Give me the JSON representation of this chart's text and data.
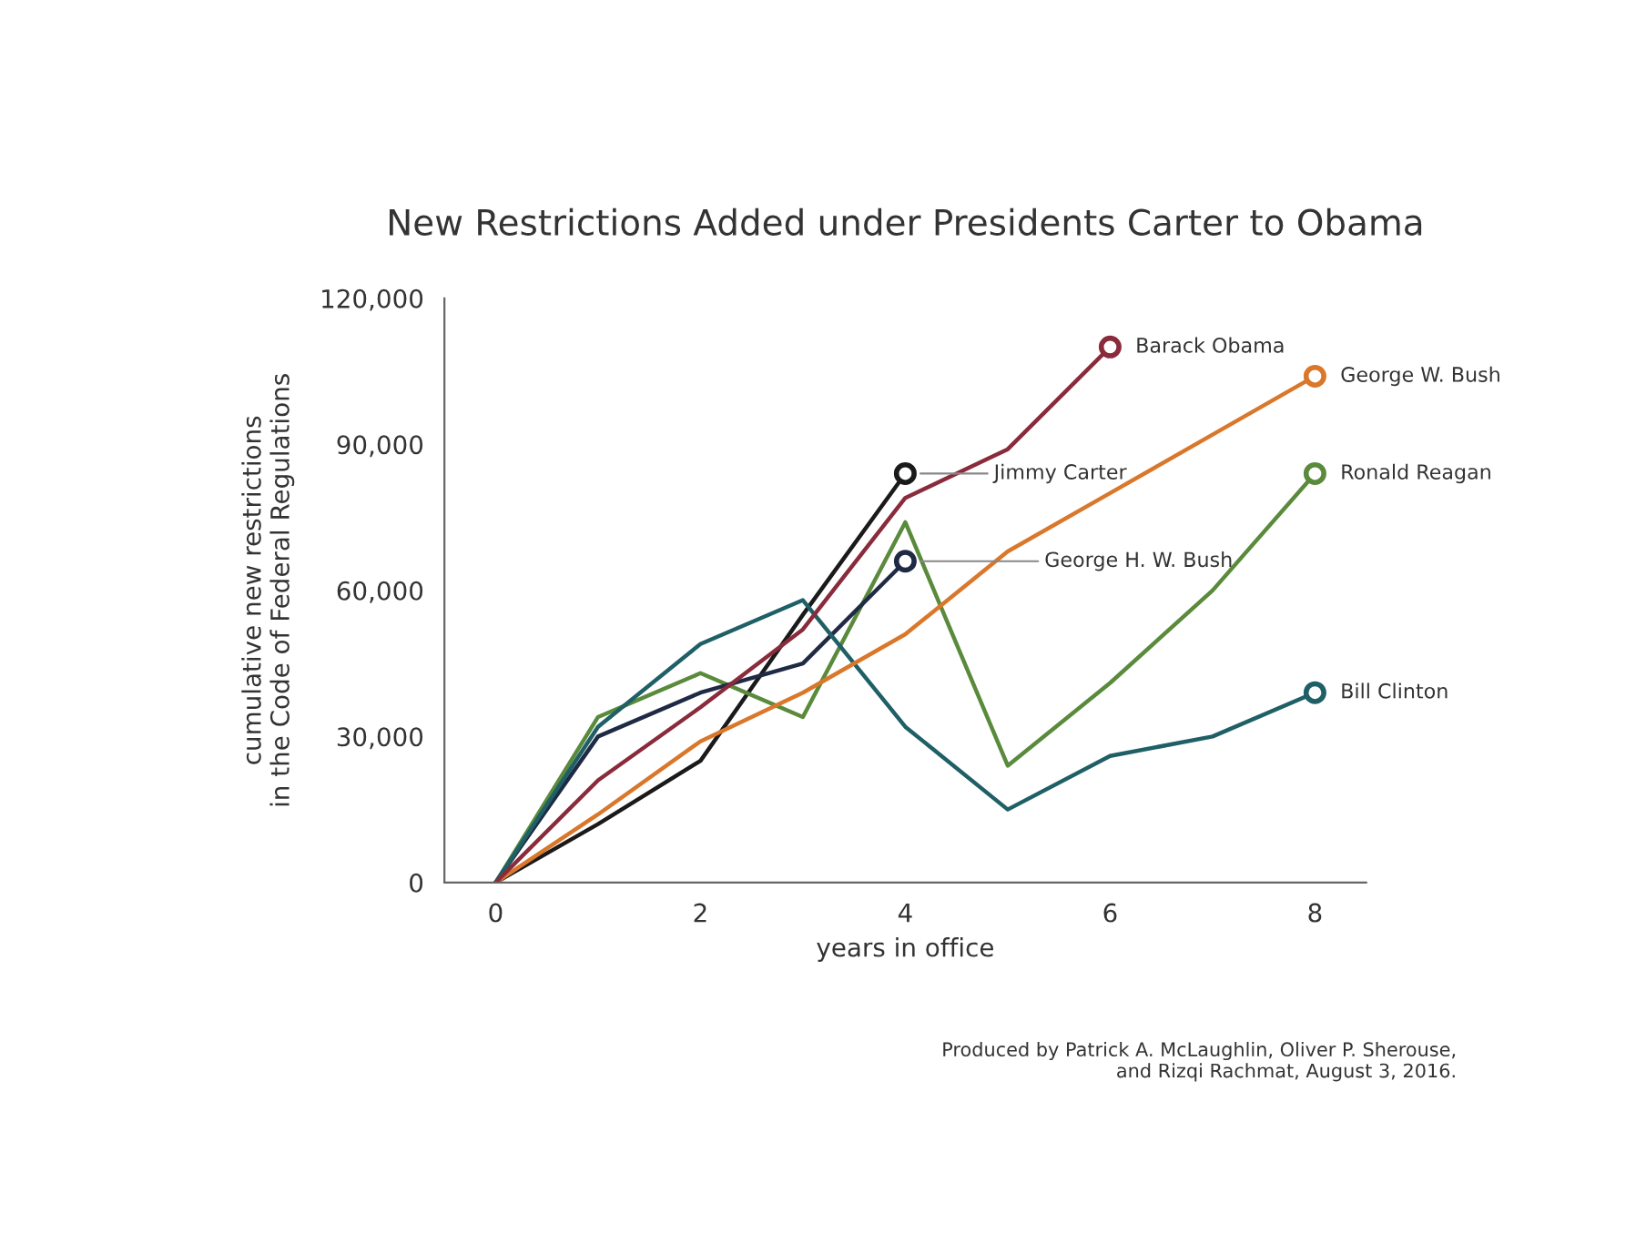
{
  "chart_data": {
    "type": "line",
    "title": "New Restrictions Added under Presidents Carter to Obama",
    "xlabel": "years in office",
    "ylabel": "cumulative new restrictions\nin the Code of Federal Regulations",
    "series": [
      {
        "name": "Jimmy Carter",
        "color": "#1a1a1a",
        "x": [
          0,
          1,
          2,
          3,
          4
        ],
        "values": [
          0,
          12000,
          25000,
          55000,
          84000
        ]
      },
      {
        "name": "Ronald Reagan",
        "color": "#5a8a3c",
        "x": [
          0,
          1,
          2,
          3,
          4,
          5,
          6,
          7,
          8
        ],
        "values": [
          0,
          34000,
          43000,
          34000,
          74000,
          24000,
          41000,
          60000,
          84000
        ]
      },
      {
        "name": "George H. W. Bush",
        "color": "#1f2a44",
        "x": [
          0,
          1,
          2,
          3,
          4
        ],
        "values": [
          0,
          30000,
          39000,
          45000,
          66000
        ]
      },
      {
        "name": "Bill Clinton",
        "color": "#1f5f66",
        "x": [
          0,
          1,
          2,
          3,
          4,
          5,
          6,
          7,
          8
        ],
        "values": [
          0,
          32000,
          49000,
          58000,
          32000,
          15000,
          26000,
          30000,
          39000
        ]
      },
      {
        "name": "George W. Bush",
        "color": "#d9772b",
        "x": [
          0,
          1,
          2,
          3,
          4,
          5,
          6,
          7,
          8
        ],
        "values": [
          0,
          14000,
          29000,
          39000,
          51000,
          68000,
          80000,
          92000,
          104000
        ]
      },
      {
        "name": "Barack Obama",
        "color": "#8a2b3b",
        "x": [
          0,
          1,
          2,
          3,
          4,
          5,
          6
        ],
        "values": [
          0,
          21000,
          36000,
          52000,
          79000,
          89000,
          110000
        ]
      }
    ],
    "xlim": [
      -0.5,
      8.5
    ],
    "xticks": [
      0,
      2,
      4,
      6,
      8
    ],
    "ylim": [
      0,
      120000
    ],
    "yticks": [
      {
        "value": 0,
        "label": "0"
      },
      {
        "value": 30000,
        "label": "30,000"
      },
      {
        "value": 60000,
        "label": "60,000"
      },
      {
        "value": 90000,
        "label": "90,000"
      },
      {
        "value": 120000,
        "label": "120,000"
      }
    ],
    "grid": false,
    "legend": false,
    "line_style": "solid",
    "annotations": [
      "Produced by Patrick A. McLaughlin, Oliver P. Sherouse,\nand Rizqi Rachmat, August 3, 2016."
    ]
  }
}
